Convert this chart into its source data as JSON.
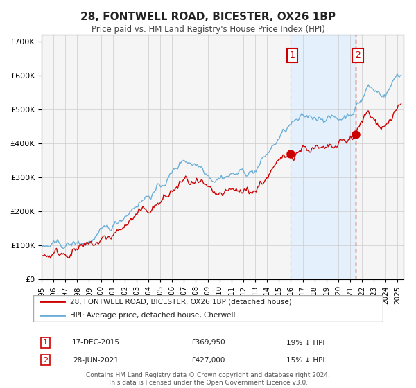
{
  "title": "28, FONTWELL ROAD, BICESTER, OX26 1BP",
  "subtitle": "Price paid vs. HM Land Registry's House Price Index (HPI)",
  "xlabel": "",
  "ylabel": "",
  "legend_line1": "28, FONTWELL ROAD, BICESTER, OX26 1BP (detached house)",
  "legend_line2": "HPI: Average price, detached house, Cherwell",
  "sale1_date": "17-DEC-2015",
  "sale1_price": "£369,950",
  "sale1_hpi": "19% ↓ HPI",
  "sale2_date": "28-JUN-2021",
  "sale2_price": "£427,000",
  "sale2_hpi": "15% ↓ HPI",
  "footer1": "Contains HM Land Registry data © Crown copyright and database right 2024.",
  "footer2": "This data is licensed under the Open Government Licence v3.0.",
  "hpi_color": "#6baed6",
  "price_color": "#cc0000",
  "bg_color": "#ffffff",
  "plot_bg_color": "#f5f5f5",
  "grid_color": "#cccccc",
  "shade_color": "#ddeeff",
  "vline1_color": "#888888",
  "vline2_color": "#cc0000",
  "ylim": [
    0,
    720000
  ],
  "xlim_start": 1995.0,
  "xlim_end": 2025.5,
  "sale1_x": 2015.96,
  "sale1_y": 369950,
  "sale2_x": 2021.49,
  "sale2_y": 427000
}
